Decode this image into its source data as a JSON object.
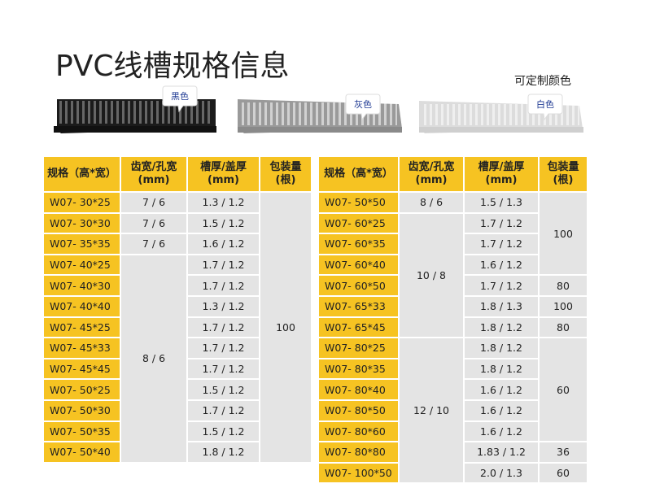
{
  "header": {
    "title": "PVC线槽规格信息",
    "note": "可定制颜色"
  },
  "colors": [
    "黑色",
    "灰色",
    "白色"
  ],
  "tables": [
    {
      "headers": [
        "规格（高*宽）",
        "齿宽/孔宽\n(mm)",
        "槽厚/盖厚\n(mm)",
        "包装量\n(根)"
      ],
      "rows": [
        [
          "W07- 30*25",
          "7 / 6",
          "1.3 / 1.2",
          "100"
        ],
        [
          "W07- 30*30",
          "7 / 6",
          "1.5 / 1.2",
          null
        ],
        [
          "W07- 35*35",
          "7 / 6",
          "1.6 / 1.2",
          null
        ],
        [
          "W07- 40*25",
          "8 / 6",
          "1.7 / 1.2",
          null
        ],
        [
          "W07- 40*30",
          null,
          "1.7 / 1.2",
          null
        ],
        [
          "W07- 40*40",
          null,
          "1.3 / 1.2",
          null
        ],
        [
          "W07- 45*25",
          null,
          "1.7 / 1.2",
          null
        ],
        [
          "W07- 45*33",
          null,
          "1.7 / 1.2",
          null
        ],
        [
          "W07- 45*45",
          null,
          "1.7 / 1.2",
          null
        ],
        [
          "W07- 50*25",
          null,
          "1.5 / 1.2",
          null
        ],
        [
          "W07- 50*30",
          null,
          "1.7 / 1.2",
          null
        ],
        [
          "W07- 50*35",
          null,
          "1.5 / 1.2",
          null
        ],
        [
          "W07- 50*40",
          null,
          "1.8 / 1.2",
          null
        ]
      ]
    },
    {
      "headers": [
        "规格（高*宽）",
        "齿宽/孔宽\n(mm)",
        "槽厚/盖厚\n(mm)",
        "包装量\n(根)"
      ],
      "rows": [
        [
          "W07- 50*50",
          "8 / 6",
          "1.5 / 1.3",
          "100"
        ],
        [
          "W07- 60*25",
          "10 / 8",
          "1.7 / 1.2",
          null
        ],
        [
          "W07- 60*35",
          null,
          "1.7 / 1.2",
          null
        ],
        [
          "W07- 60*40",
          null,
          "1.6 / 1.2",
          null
        ],
        [
          "W07- 60*50",
          null,
          "1.7 / 1.2",
          "80"
        ],
        [
          "W07- 65*33",
          null,
          "1.8 / 1.3",
          "100"
        ],
        [
          "W07- 65*45",
          null,
          "1.8 / 1.2",
          "80"
        ],
        [
          "W07- 80*25",
          "12 / 10",
          "1.8 / 1.2",
          "60"
        ],
        [
          "W07- 80*35",
          null,
          "1.8 / 1.2",
          null
        ],
        [
          "W07- 80*40",
          null,
          "1.6 / 1.2",
          null
        ],
        [
          "W07- 80*50",
          null,
          "1.6 / 1.2",
          null
        ],
        [
          "W07- 80*60",
          null,
          "1.6 / 1.2",
          null
        ],
        [
          "W07- 80*80",
          null,
          "1.83 / 1.2",
          "36"
        ],
        [
          "W07- 100*50",
          null,
          "2.0 / 1.3",
          "60"
        ]
      ]
    }
  ]
}
